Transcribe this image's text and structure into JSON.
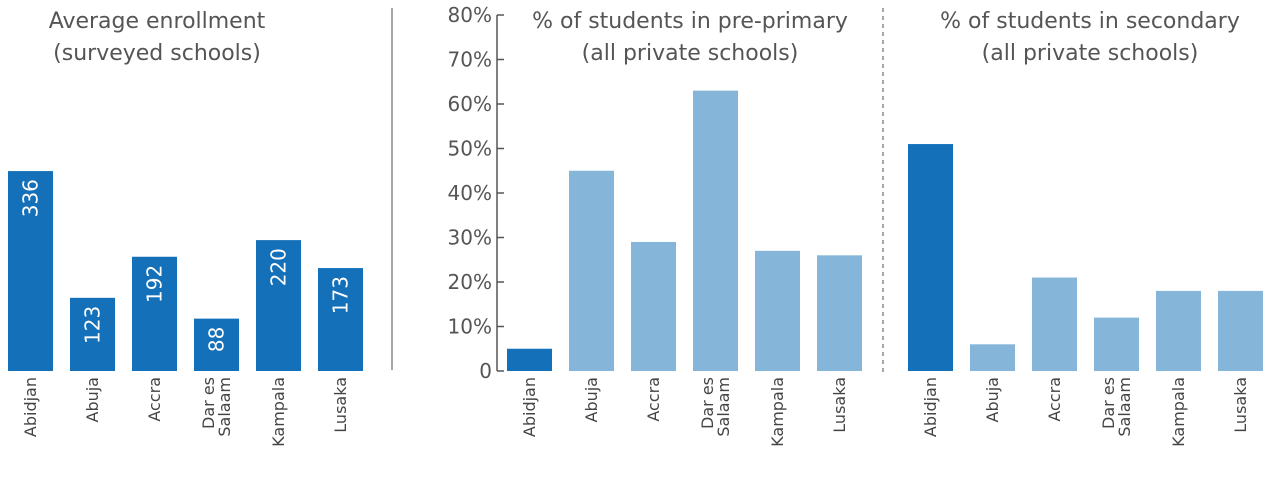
{
  "colors": {
    "dark": "#1470b8",
    "light": "#85b6da",
    "axis": "#555555",
    "divider": "#888888"
  },
  "chart_data": [
    {
      "type": "bar",
      "title": [
        "Average enrollment",
        "(surveyed schools)"
      ],
      "categories": [
        [
          "Abidjan"
        ],
        [
          "Abuja"
        ],
        [
          "Accra"
        ],
        [
          "Dar es",
          "Salaam"
        ],
        [
          "Kampala"
        ],
        [
          "Lusaka"
        ]
      ],
      "values": [
        336,
        123,
        192,
        88,
        220,
        173
      ],
      "data_labels": [
        "336",
        "123",
        "192",
        "88",
        "220",
        "173"
      ],
      "ylim": [
        0,
        400
      ],
      "grid": false,
      "highlight_index": null
    },
    {
      "type": "bar",
      "title": [
        "% of students in pre-primary",
        "(all private schools)"
      ],
      "categories": [
        [
          "Abidjan"
        ],
        [
          "Abuja"
        ],
        [
          "Accra"
        ],
        [
          "Dar es",
          "Salaam"
        ],
        [
          "Kampala"
        ],
        [
          "Lusaka"
        ]
      ],
      "values": [
        5,
        45,
        29,
        63,
        27,
        26
      ],
      "ylim": [
        0,
        80
      ],
      "yticks": [
        "0",
        "10%",
        "20%",
        "30%",
        "40%",
        "50%",
        "60%",
        "70%",
        "80%"
      ],
      "grid": false,
      "highlight_index": 0
    },
    {
      "type": "bar",
      "title": [
        "% of students in secondary",
        "(all private schools)"
      ],
      "categories": [
        [
          "Abidjan"
        ],
        [
          "Abuja"
        ],
        [
          "Accra"
        ],
        [
          "Dar es",
          "Salaam"
        ],
        [
          "Kampala"
        ],
        [
          "Lusaka"
        ]
      ],
      "values": [
        51,
        6,
        21,
        12,
        18,
        18
      ],
      "ylim": [
        0,
        80
      ],
      "grid": false,
      "highlight_index": 0
    }
  ]
}
